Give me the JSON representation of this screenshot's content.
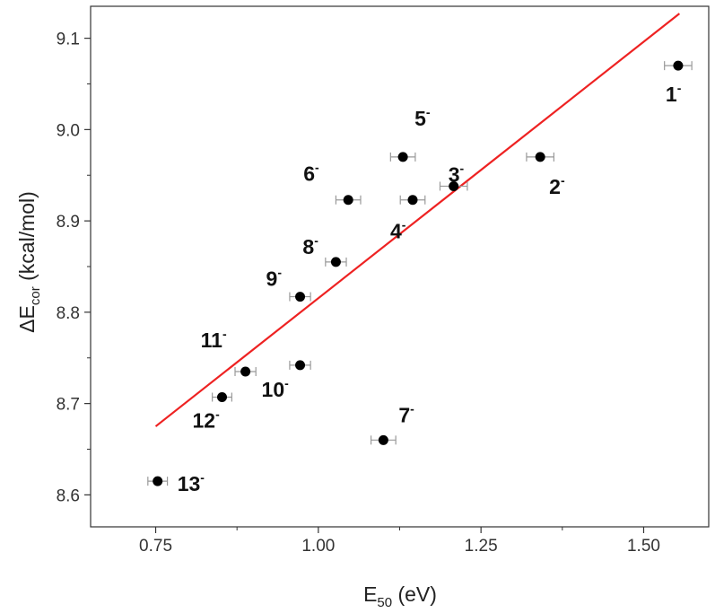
{
  "chart_data": {
    "type": "scatter",
    "xlabel": {
      "main": "E",
      "sub": "50",
      "rest": " (eV)"
    },
    "ylabel": {
      "main": "ΔE",
      "sub": "cor",
      "rest": " (kcal/mol)"
    },
    "xlim": [
      0.65,
      1.6
    ],
    "ylim": [
      8.565,
      9.135
    ],
    "xticks": [
      0.75,
      1.0,
      1.25,
      1.5
    ],
    "xtick_labels": [
      "0.75",
      "1.00",
      "1.25",
      "1.50"
    ],
    "yticks": [
      8.6,
      8.7,
      8.8,
      8.9,
      9.0,
      9.1
    ],
    "ytick_labels": [
      "8.6",
      "8.7",
      "8.8",
      "8.9",
      "9.0",
      "9.1"
    ],
    "grid": false,
    "legend": "none",
    "colors": {
      "points": "#000000",
      "fit": "#ee2222",
      "errorbars": "#999999",
      "axis": "#333333"
    },
    "points": [
      {
        "label": "1",
        "x": 1.553,
        "y": 9.07,
        "xerr": 0.021
      },
      {
        "label": "2",
        "x": 1.341,
        "y": 8.97,
        "xerr": 0.021
      },
      {
        "label": "3",
        "x": 1.208,
        "y": 8.938,
        "xerr": 0.021
      },
      {
        "label": "4",
        "x": 1.145,
        "y": 8.923,
        "xerr": 0.019
      },
      {
        "label": "5",
        "x": 1.13,
        "y": 8.97,
        "xerr": 0.019
      },
      {
        "label": "6",
        "x": 1.046,
        "y": 8.923,
        "xerr": 0.019
      },
      {
        "label": "7",
        "x": 1.1,
        "y": 8.66,
        "xerr": 0.019
      },
      {
        "label": "8",
        "x": 1.027,
        "y": 8.855,
        "xerr": 0.016
      },
      {
        "label": "9",
        "x": 0.972,
        "y": 8.817,
        "xerr": 0.016
      },
      {
        "label": "10",
        "x": 0.972,
        "y": 8.742,
        "xerr": 0.016
      },
      {
        "label": "11",
        "x": 0.888,
        "y": 8.735,
        "xerr": 0.016
      },
      {
        "label": "12",
        "x": 0.852,
        "y": 8.707,
        "xerr": 0.015
      },
      {
        "label": "13",
        "x": 0.753,
        "y": 8.615,
        "xerr": 0.015
      }
    ],
    "label_superscript": "-",
    "fit_line": {
      "x": [
        0.75,
        1.555
      ],
      "y": [
        8.675,
        9.127
      ]
    }
  }
}
